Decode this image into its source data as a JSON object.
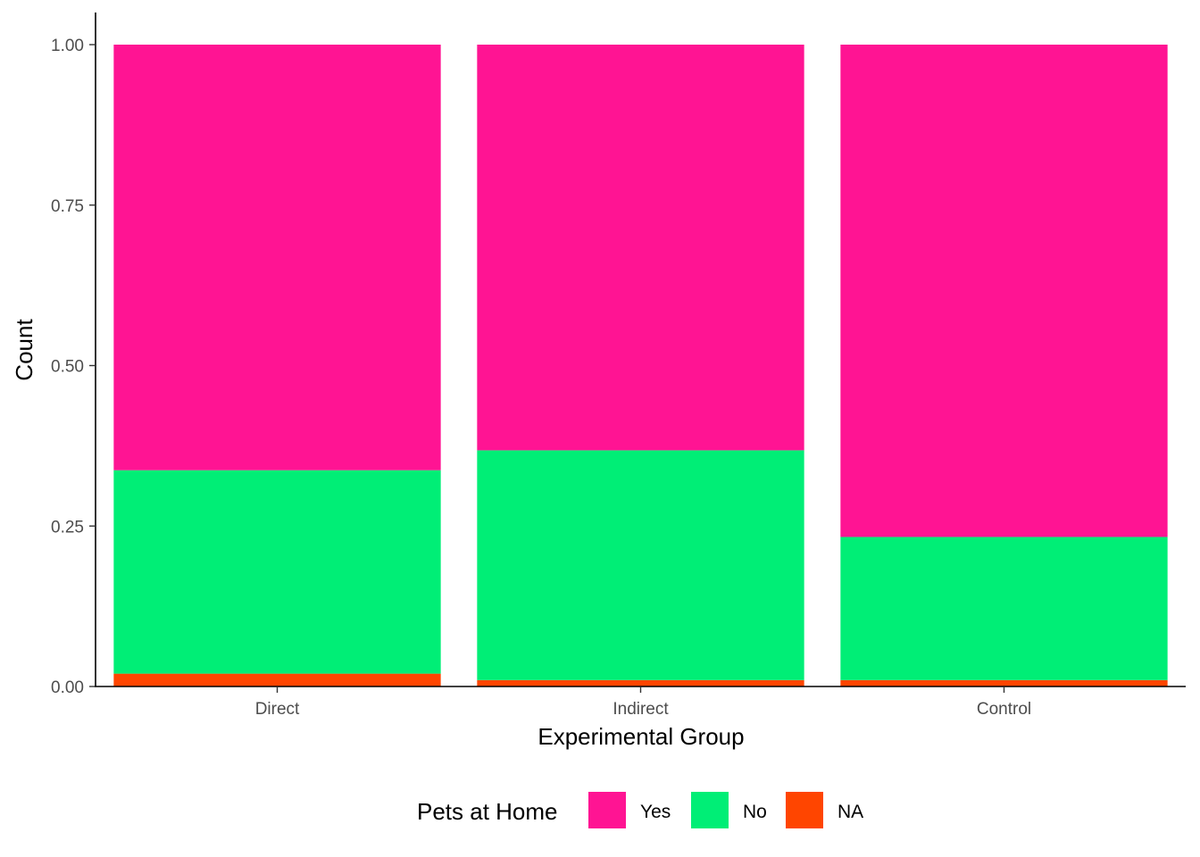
{
  "chart_data": {
    "type": "bar",
    "stacked": true,
    "categories": [
      "Direct",
      "Indirect",
      "Control"
    ],
    "series": [
      {
        "name": "NA",
        "color": "#FF4500",
        "values": [
          0.02,
          0.01,
          0.01
        ]
      },
      {
        "name": "No",
        "color": "#00EE76",
        "values": [
          0.317,
          0.358,
          0.223
        ]
      },
      {
        "name": "Yes",
        "color": "#FF1493",
        "values": [
          0.663,
          0.632,
          0.767
        ]
      }
    ],
    "xlabel": "Experimental Group",
    "ylabel": "Count",
    "ylim": [
      0,
      1
    ],
    "yticks": [
      "0.00",
      "0.25",
      "0.50",
      "0.75",
      "1.00"
    ],
    "ytick_values": [
      0,
      0.25,
      0.5,
      0.75,
      1
    ],
    "grid": false,
    "legend": {
      "title": "Pets at Home",
      "position": "bottom",
      "entries": [
        {
          "label": "Yes",
          "color": "#FF1493"
        },
        {
          "label": "No",
          "color": "#00EE76"
        },
        {
          "label": "NA",
          "color": "#FF4500"
        }
      ]
    }
  }
}
